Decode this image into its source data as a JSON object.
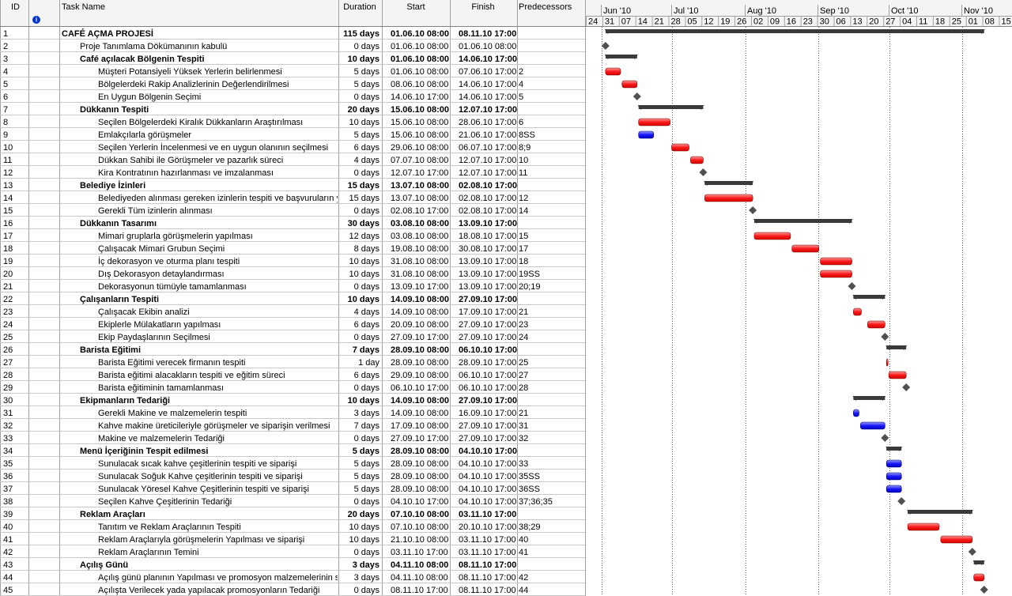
{
  "columns": {
    "id": "ID",
    "task_name": "Task Name",
    "duration": "Duration",
    "start": "Start",
    "finish": "Finish",
    "predecessors": "Predecessors"
  },
  "timescale": {
    "months": [
      "Jun '10",
      "Jul '10",
      "Aug '10",
      "Sep '10",
      "Oct '10",
      "Nov '10"
    ],
    "weeks": [
      "24",
      "31",
      "07",
      "14",
      "21",
      "28",
      "05",
      "12",
      "19",
      "26",
      "02",
      "09",
      "16",
      "23",
      "30",
      "06",
      "13",
      "20",
      "27",
      "04",
      "11",
      "18",
      "25",
      "01",
      "08",
      "15"
    ]
  },
  "rows": [
    {
      "id": 1,
      "name": "CAFÉ AÇMA PROJESİ",
      "duration": "115 days",
      "start": "01.06.10 08:00",
      "finish": "08.11.10 17:00"
    },
    {
      "id": 2,
      "name": "Proje Tanımlama Dökümanının kabulü",
      "duration": "0 days",
      "start": "01.06.10 08:00",
      "finish": "01.06.10 08:00"
    },
    {
      "id": 3,
      "name": "Café açılacak Bölgenin Tespiti",
      "duration": "10 days",
      "start": "01.06.10 08:00",
      "finish": "14.06.10 17:00"
    },
    {
      "id": 4,
      "name": "Müşteri Potansiyeli Yüksek Yerlerin belirlenmesi",
      "duration": "5 days",
      "start": "01.06.10 08:00",
      "finish": "07.06.10 17:00",
      "pred": "2"
    },
    {
      "id": 5,
      "name": "Bölgelerdeki Rakip Analizlerinin Değerlendirilmesi",
      "duration": "5 days",
      "start": "08.06.10 08:00",
      "finish": "14.06.10 17:00",
      "pred": "4"
    },
    {
      "id": 6,
      "name": "En Uygun Bölgenin Seçimi",
      "duration": "0 days",
      "start": "14.06.10 17:00",
      "finish": "14.06.10 17:00",
      "pred": "5"
    },
    {
      "id": 7,
      "name": "Dükkanın Tespiti",
      "duration": "20 days",
      "start": "15.06.10 08:00",
      "finish": "12.07.10 17:00"
    },
    {
      "id": 8,
      "name": "Seçilen Bölgelerdeki Kiralık Dükkanların Araştırılması",
      "duration": "10 days",
      "start": "15.06.10 08:00",
      "finish": "28.06.10 17:00",
      "pred": "6"
    },
    {
      "id": 9,
      "name": "Emlakçılarla görüşmeler",
      "duration": "5 days",
      "start": "15.06.10 08:00",
      "finish": "21.06.10 17:00",
      "pred": "8SS"
    },
    {
      "id": 10,
      "name": "Seçilen Yerlerin İncelenmesi ve en uygun olanının seçilmesi",
      "duration": "6 days",
      "start": "29.06.10 08:00",
      "finish": "06.07.10 17:00",
      "pred": "8;9"
    },
    {
      "id": 11,
      "name": "Dükkan Sahibi ile Görüşmeler ve pazarlık süreci",
      "duration": "4 days",
      "start": "07.07.10 08:00",
      "finish": "12.07.10 17:00",
      "pred": "10"
    },
    {
      "id": 12,
      "name": "Kira Kontratının hazırlanması ve imzalanması",
      "duration": "0 days",
      "start": "12.07.10 17:00",
      "finish": "12.07.10 17:00",
      "pred": "11"
    },
    {
      "id": 13,
      "name": "Belediye İzinleri",
      "duration": "15 days",
      "start": "13.07.10 08:00",
      "finish": "02.08.10 17:00"
    },
    {
      "id": 14,
      "name": "Belediyeden alınması gereken izinlerin tespiti ve başvuruların ya",
      "duration": "15 days",
      "start": "13.07.10 08:00",
      "finish": "02.08.10 17:00",
      "pred": "12"
    },
    {
      "id": 15,
      "name": "Gerekli Tüm izinlerin alınması",
      "duration": "0 days",
      "start": "02.08.10 17:00",
      "finish": "02.08.10 17:00",
      "pred": "14"
    },
    {
      "id": 16,
      "name": "Dükkanın Tasarımı",
      "duration": "30 days",
      "start": "03.08.10 08:00",
      "finish": "13.09.10 17:00"
    },
    {
      "id": 17,
      "name": "Mimari gruplarla görüşmelerin yapılması",
      "duration": "12 days",
      "start": "03.08.10 08:00",
      "finish": "18.08.10 17:00",
      "pred": "15"
    },
    {
      "id": 18,
      "name": "Çalışacak Mimari Grubun Seçimi",
      "duration": "8 days",
      "start": "19.08.10 08:00",
      "finish": "30.08.10 17:00",
      "pred": "17"
    },
    {
      "id": 19,
      "name": "İç dekorasyon ve oturma planı tespiti",
      "duration": "10 days",
      "start": "31.08.10 08:00",
      "finish": "13.09.10 17:00",
      "pred": "18"
    },
    {
      "id": 20,
      "name": "Dış Dekorasyon detaylandırması",
      "duration": "10 days",
      "start": "31.08.10 08:00",
      "finish": "13.09.10 17:00",
      "pred": "19SS"
    },
    {
      "id": 21,
      "name": "Dekorasyonun tümüyle tamamlanması",
      "duration": "0 days",
      "start": "13.09.10 17:00",
      "finish": "13.09.10 17:00",
      "pred": "20;19"
    },
    {
      "id": 22,
      "name": "Çalışanların Tespiti",
      "duration": "10 days",
      "start": "14.09.10 08:00",
      "finish": "27.09.10 17:00"
    },
    {
      "id": 23,
      "name": "Çalışacak Ekibin analizi",
      "duration": "4 days",
      "start": "14.09.10 08:00",
      "finish": "17.09.10 17:00",
      "pred": "21"
    },
    {
      "id": 24,
      "name": "Ekiplerle Mülakatların yapılması",
      "duration": "6 days",
      "start": "20.09.10 08:00",
      "finish": "27.09.10 17:00",
      "pred": "23"
    },
    {
      "id": 25,
      "name": "Ekip Paydaşlarının Seçilmesi",
      "duration": "0 days",
      "start": "27.09.10 17:00",
      "finish": "27.09.10 17:00",
      "pred": "24"
    },
    {
      "id": 26,
      "name": "Barista Eğitimi",
      "duration": "7 days",
      "start": "28.09.10 08:00",
      "finish": "06.10.10 17:00"
    },
    {
      "id": 27,
      "name": "Barista Eğitimi verecek firmanın tespiti",
      "duration": "1 day",
      "start": "28.09.10 08:00",
      "finish": "28.09.10 17:00",
      "pred": "25"
    },
    {
      "id": 28,
      "name": "Barista eğitimi alacakların tespiti ve eğitim süreci",
      "duration": "6 days",
      "start": "29.09.10 08:00",
      "finish": "06.10.10 17:00",
      "pred": "27"
    },
    {
      "id": 29,
      "name": "Barista eğitiminin tamamlanması",
      "duration": "0 days",
      "start": "06.10.10 17:00",
      "finish": "06.10.10 17:00",
      "pred": "28"
    },
    {
      "id": 30,
      "name": "Ekipmanların Tedariği",
      "duration": "10 days",
      "start": "14.09.10 08:00",
      "finish": "27.09.10 17:00"
    },
    {
      "id": 31,
      "name": "Gerekli Makine ve malzemelerin tespiti",
      "duration": "3 days",
      "start": "14.09.10 08:00",
      "finish": "16.09.10 17:00",
      "pred": "21"
    },
    {
      "id": 32,
      "name": "Kahve makine üreticileriyle görüşmeler ve siparişin verilmesi",
      "duration": "7 days",
      "start": "17.09.10 08:00",
      "finish": "27.09.10 17:00",
      "pred": "31"
    },
    {
      "id": 33,
      "name": "Makine ve malzemelerin Tedariği",
      "duration": "0 days",
      "start": "27.09.10 17:00",
      "finish": "27.09.10 17:00",
      "pred": "32"
    },
    {
      "id": 34,
      "name": "Menü İçeriğinin Tespit edilmesi",
      "duration": "5 days",
      "start": "28.09.10 08:00",
      "finish": "04.10.10 17:00"
    },
    {
      "id": 35,
      "name": "Sunulacak sıcak kahve çeşitlerinin tespiti ve siparişi",
      "duration": "5 days",
      "start": "28.09.10 08:00",
      "finish": "04.10.10 17:00",
      "pred": "33"
    },
    {
      "id": 36,
      "name": "Sunulacak Soğuk Kahve çeşitlerinin tespiti ve siparişi",
      "duration": "5 days",
      "start": "28.09.10 08:00",
      "finish": "04.10.10 17:00",
      "pred": "35SS"
    },
    {
      "id": 37,
      "name": "Sunulacak Yöresel Kahve Çeşitlerinin tespiti ve siparişi",
      "duration": "5 days",
      "start": "28.09.10 08:00",
      "finish": "04.10.10 17:00",
      "pred": "36SS"
    },
    {
      "id": 38,
      "name": "Seçilen Kahve Çeşitlerinin Tedariği",
      "duration": "0 days",
      "start": "04.10.10 17:00",
      "finish": "04.10.10 17:00",
      "pred": "37;36;35"
    },
    {
      "id": 39,
      "name": "Reklam Araçları",
      "duration": "20 days",
      "start": "07.10.10 08:00",
      "finish": "03.11.10 17:00"
    },
    {
      "id": 40,
      "name": "Tanıtım ve Reklam Araçlarının Tespiti",
      "duration": "10 days",
      "start": "07.10.10 08:00",
      "finish": "20.10.10 17:00",
      "pred": "38;29"
    },
    {
      "id": 41,
      "name": "Reklam Araçlarıyla görüşmelerin Yapılması ve siparişi",
      "duration": "10 days",
      "start": "21.10.10 08:00",
      "finish": "03.11.10 17:00",
      "pred": "40"
    },
    {
      "id": 42,
      "name": "Reklam Araçlarının Temini",
      "duration": "0 days",
      "start": "03.11.10 17:00",
      "finish": "03.11.10 17:00",
      "pred": "41"
    },
    {
      "id": 43,
      "name": "Açılış Günü",
      "duration": "3 days",
      "start": "04.11.10 08:00",
      "finish": "08.11.10 17:00"
    },
    {
      "id": 44,
      "name": "Açılış günü planının Yapılması ve promosyon malzemelerinin sip",
      "duration": "3 days",
      "start": "04.11.10 08:00",
      "finish": "08.11.10 17:00",
      "pred": "42"
    },
    {
      "id": 45,
      "name": "Açılışta Verilecek yada yapılacak promosyonların Tedariği",
      "duration": "0 days",
      "start": "08.11.10 17:00",
      "finish": "08.11.10 17:00",
      "pred": "44"
    }
  ]
}
